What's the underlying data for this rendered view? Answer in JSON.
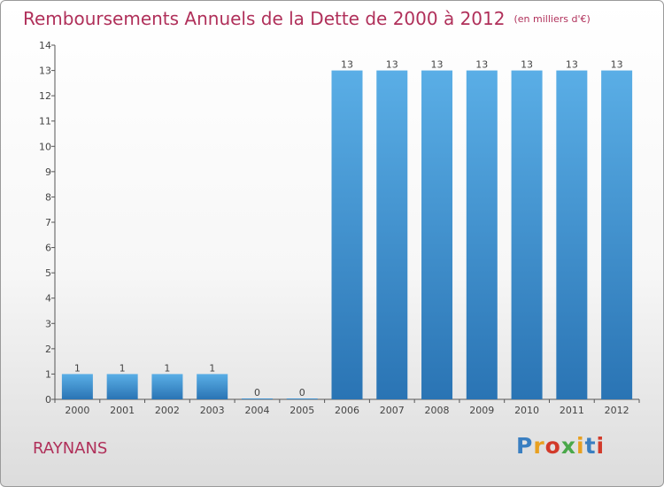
{
  "title": "Remboursements Annuels de la Dette de 2000 à 2012",
  "unit": "(en milliers d'€)",
  "place": "RAYNANS",
  "logo": {
    "text": "Proxiti",
    "colors": [
      "#3a7fc1",
      "#e8a020",
      "#d23a2a",
      "#4aa84a",
      "#e8a020",
      "#3a7fc1",
      "#d23a2a"
    ]
  },
  "colors": {
    "title": "#b0305a",
    "bar_top": "#5aaee6",
    "bar_bottom": "#2a74b4",
    "axis": "#555555"
  },
  "chart_data": {
    "type": "bar",
    "title": "Remboursements Annuels de la Dette de 2000 à 2012",
    "categories": [
      "2000",
      "2001",
      "2002",
      "2003",
      "2004",
      "2005",
      "2006",
      "2007",
      "2008",
      "2009",
      "2010",
      "2011",
      "2012"
    ],
    "values": [
      1,
      1,
      1,
      1,
      0,
      0,
      13,
      13,
      13,
      13,
      13,
      13,
      13
    ],
    "data_labels": [
      "1",
      "1",
      "1",
      "1",
      "0",
      "0",
      "13",
      "13",
      "13",
      "13",
      "13",
      "13",
      "13"
    ],
    "yticks": [
      "0",
      "1",
      "2",
      "3",
      "4",
      "5",
      "6",
      "7",
      "8",
      "9",
      "10",
      "11",
      "12",
      "13",
      "14"
    ],
    "ylim": [
      0,
      14
    ],
    "xlabel": "",
    "ylabel": "",
    "grid": false
  }
}
